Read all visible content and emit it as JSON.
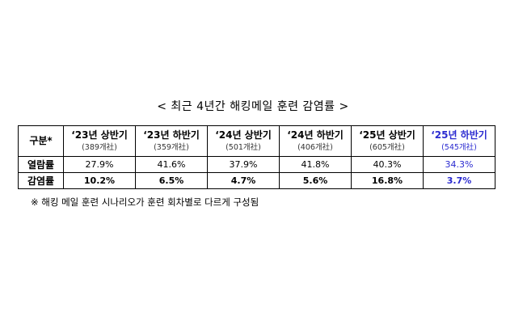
{
  "title": "< 최근 4년간 해킹메일 훈련 감염률 >",
  "table": {
    "corner": "구분*",
    "columns": [
      {
        "period": "‘23년 상반기",
        "count": "(389개社)"
      },
      {
        "period": "‘23년 하반기",
        "count": "(359개社)"
      },
      {
        "period": "‘24년 상반기",
        "count": "(501개社)"
      },
      {
        "period": "‘24년 하반기",
        "count": "(406개社)"
      },
      {
        "period": "‘25년 상반기",
        "count": "(605개社)"
      },
      {
        "period": "‘25년 하반기",
        "count": "(545개社)"
      }
    ],
    "rows": [
      {
        "label": "열람률",
        "values": [
          "27.9%",
          "41.6%",
          "37.9%",
          "41.8%",
          "40.3%",
          "34.3%"
        ]
      },
      {
        "label": "감염률",
        "values": [
          "10.2%",
          "6.5%",
          "4.7%",
          "5.6%",
          "16.8%",
          "3.7%"
        ]
      }
    ],
    "highlight_color": "#2a2ad0"
  },
  "note": "※ 해킹 메일 훈련 시나리오가 훈련 회차별로 다르게 구성됨"
}
